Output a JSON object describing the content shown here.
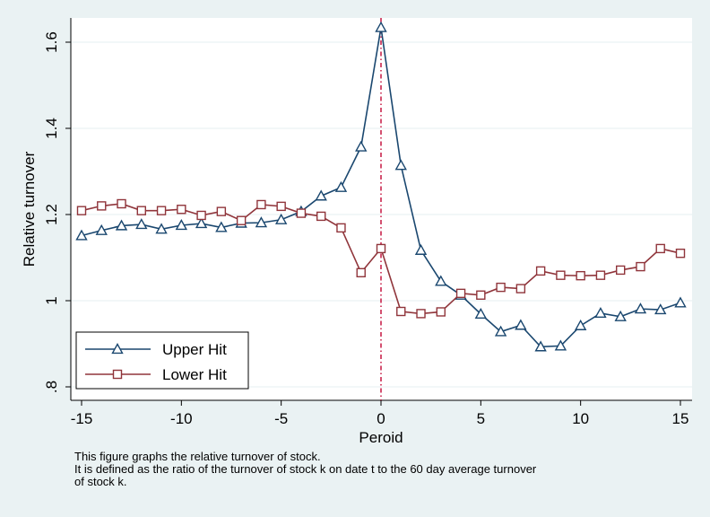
{
  "colors": {
    "background": "#eaf2f3",
    "plot_area": "#ffffff",
    "grid": "#eaf2f3",
    "series_upper": "#1a476f",
    "series_lower": "#90353b",
    "reference_line": "#c10534"
  },
  "chart_data": {
    "type": "line",
    "xlabel": "Peroid",
    "ylabel": "Relative turnover",
    "xlim": [
      -15,
      15
    ],
    "ylim": [
      0.8,
      1.6
    ],
    "x_ticks": [
      -15,
      -10,
      -5,
      0,
      5,
      10,
      15
    ],
    "x_tick_labels": [
      "-15",
      "-10",
      "-5",
      "0",
      "5",
      "10",
      "15"
    ],
    "y_ticks": [
      0.8,
      1.0,
      1.2,
      1.4,
      1.6
    ],
    "y_tick_labels": [
      ".8",
      "1",
      "1.2",
      "1.4",
      "1.6"
    ],
    "grid": true,
    "reference_line_x": 0,
    "legend_position": "bottom-left",
    "x": [
      -15,
      -14,
      -13,
      -12,
      -11,
      -10,
      -9,
      -8,
      -7,
      -6,
      -5,
      -4,
      -3,
      -2,
      -1,
      0,
      1,
      2,
      3,
      4,
      5,
      6,
      7,
      8,
      9,
      10,
      11,
      12,
      13,
      14,
      15
    ],
    "series": [
      {
        "name": "Upper Hit",
        "marker": "triangle",
        "color": "#1a476f",
        "values": [
          1.151,
          1.163,
          1.174,
          1.177,
          1.166,
          1.175,
          1.179,
          1.17,
          1.18,
          1.181,
          1.188,
          1.207,
          1.243,
          1.263,
          1.357,
          1.634,
          1.314,
          1.117,
          1.045,
          1.013,
          0.969,
          0.928,
          0.943,
          0.893,
          0.895,
          0.942,
          0.971,
          0.963,
          0.981,
          0.979,
          0.995
        ]
      },
      {
        "name": "Lower Hit",
        "marker": "square",
        "color": "#90353b",
        "values": [
          1.209,
          1.22,
          1.225,
          1.209,
          1.209,
          1.212,
          1.198,
          1.207,
          1.186,
          1.223,
          1.219,
          1.203,
          1.196,
          1.169,
          1.065,
          1.121,
          0.975,
          0.97,
          0.974,
          1.017,
          1.013,
          1.031,
          1.028,
          1.069,
          1.059,
          1.058,
          1.059,
          1.071,
          1.079,
          1.121,
          1.11
        ]
      }
    ]
  },
  "caption": {
    "line1": "This figure graphs the relative turnover of stock.",
    "line2": "It is defined as the ratio of the turnover of stock k on date t to the 60 day average turnover",
    "line3": "of stock k."
  }
}
